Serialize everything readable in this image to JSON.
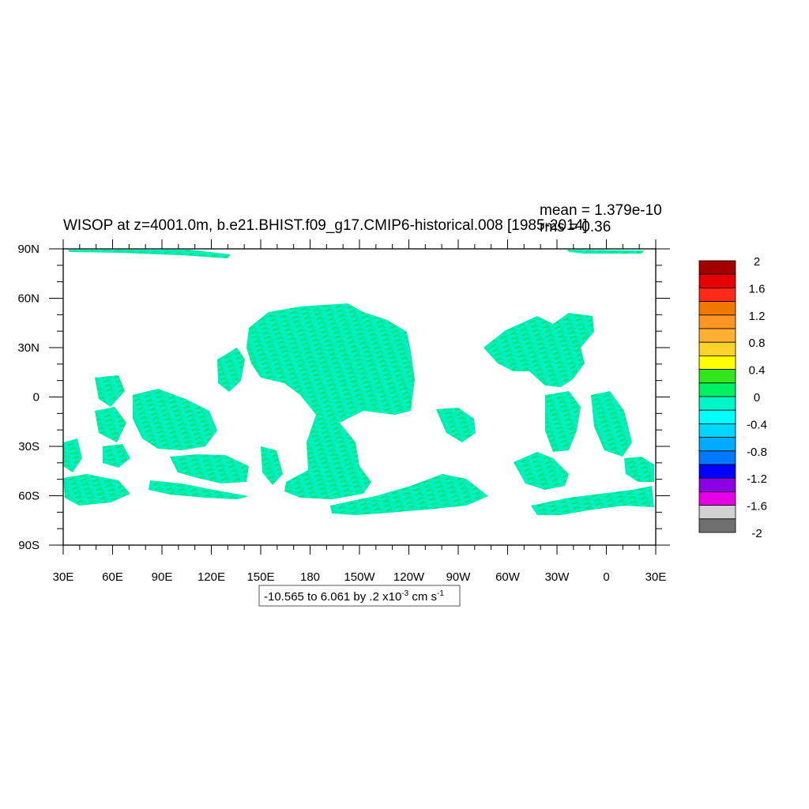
{
  "chart_data": {
    "type": "heatmap",
    "title": "WISOP at z=4001.0m, b.e21.BHIST.f09_g17.CMIP6-historical.008 [1985-2014]",
    "stats": {
      "mean": "mean = 1.379e-10",
      "rms": "rms = 0.36"
    },
    "x_ticks": [
      "30E",
      "60E",
      "90E",
      "120E",
      "150E",
      "180",
      "150W",
      "120W",
      "90W",
      "60W",
      "30W",
      "0",
      "30E"
    ],
    "y_ticks": [
      "90N",
      "60N",
      "30N",
      "0",
      "30S",
      "60S",
      "90S"
    ],
    "xlim_deg_east": [
      30,
      390
    ],
    "ylim_deg_north": [
      -90,
      90
    ],
    "colorbar": {
      "labels": [
        "2",
        "1.6",
        "1.2",
        "0.8",
        "0.4",
        "0",
        "-0.4",
        "-0.8",
        "-1.2",
        "-1.6",
        "-2"
      ],
      "colors_top_to_bottom": [
        "#a50000",
        "#e60000",
        "#ff2a1a",
        "#f07800",
        "#ff9624",
        "#ffaf32",
        "#ffd228",
        "#ffff00",
        "#32e61e",
        "#00f064",
        "#00f5c8",
        "#00ffff",
        "#00d7ff",
        "#00aaff",
        "#0078ff",
        "#0000ff",
        "#8c00e6",
        "#e600e6",
        "#d2d2d2",
        "#707070"
      ]
    },
    "contour_info": {
      "text": "-10.565 to 6.061 by .2 x10",
      "exp": "-3",
      "unit": " cm s",
      "unit_exp": "-1"
    },
    "dominant_field_color": "#00f0c0",
    "secondary_field_color": "#10e070",
    "missing_color": "#ffffff"
  }
}
